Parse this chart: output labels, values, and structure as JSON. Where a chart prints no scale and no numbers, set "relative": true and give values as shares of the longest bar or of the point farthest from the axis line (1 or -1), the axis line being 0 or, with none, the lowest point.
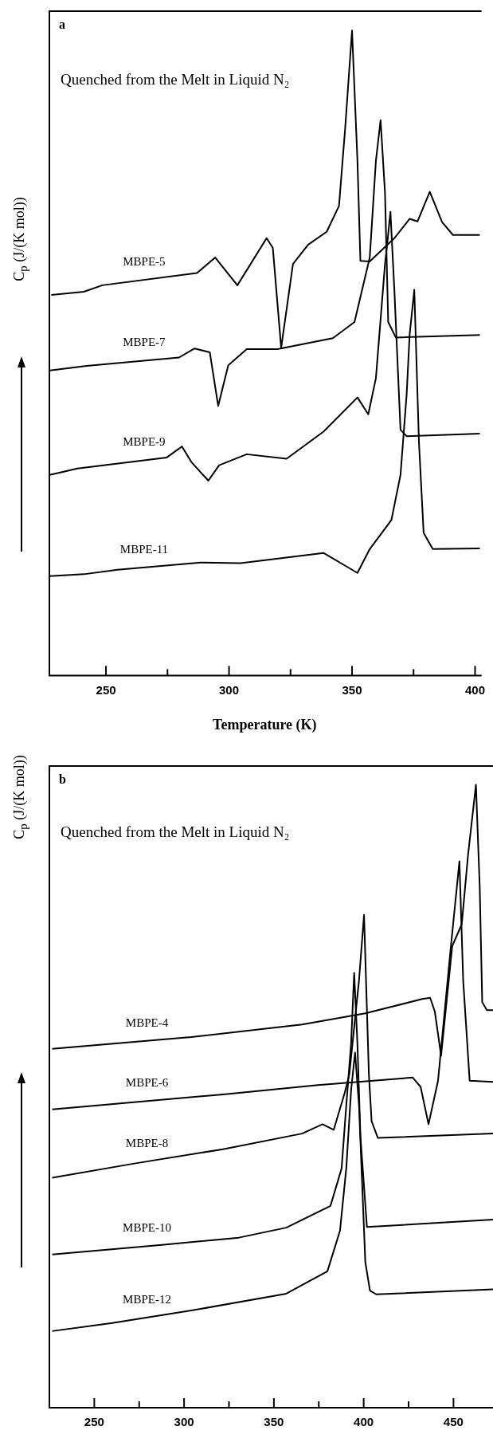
{
  "chart_data": [
    {
      "type": "line",
      "title": "a",
      "annotations": [
        "Quenched from the Melt in Liquid N₂"
      ],
      "xlabel": "Temperature (K)",
      "ylabel": "C$_{p}$ (J/(K mol))",
      "relative": true,
      "xlim": [
        227,
        402
      ],
      "xticks": [
        250,
        {
          "value": 275,
          "label": null
        },
        300,
        {
          "value": 325,
          "label": null
        },
        350,
        {
          "value": 375,
          "label": null
        },
        400
      ],
      "series": [
        {
          "name": "MBPE-5",
          "color": "#000000",
          "x": [
            227.8,
            241,
            248.5,
            287,
            294.4,
            303.4,
            315.3,
            317.8,
            321.2,
            326,
            332.2,
            339.7,
            344.7,
            347.2,
            350,
            352.2,
            353.4,
            357.2,
            367.2,
            373.4,
            376.6,
            381.6,
            386.6,
            391,
            402
          ],
          "values": [
            0.59,
            0.595,
            0.605,
            0.624,
            0.648,
            0.605,
            0.678,
            0.663,
            0.508,
            0.638,
            0.668,
            0.688,
            0.728,
            0.848,
            1.0,
            0.798,
            0.643,
            0.642,
            0.678,
            0.708,
            0.704,
            0.75,
            0.703,
            0.683,
            0.683
          ]
        },
        {
          "name": "MBPE-7",
          "color": "#000000",
          "x": [
            227.2,
            242.2,
            279.7,
            286,
            292.2,
            295.6,
            299.7,
            307.2,
            319.7,
            342.2,
            351,
            357.2,
            359.7,
            361.6,
            363.4,
            364.7,
            367.8,
            402
          ],
          "values": [
            0.473,
            0.48,
            0.493,
            0.507,
            0.501,
            0.418,
            0.481,
            0.506,
            0.506,
            0.523,
            0.548,
            0.648,
            0.798,
            0.861,
            0.748,
            0.548,
            0.524,
            0.528
          ]
        },
        {
          "name": "MBPE-9",
          "color": "#000000",
          "x": [
            227.2,
            238.4,
            274.7,
            280.9,
            284.7,
            291.6,
            296,
            307.2,
            323.4,
            338.4,
            352.2,
            356.6,
            359.7,
            363.4,
            364.4,
            365.6,
            367.2,
            369.7,
            372.2,
            402
          ],
          "values": [
            0.311,
            0.321,
            0.338,
            0.355,
            0.331,
            0.302,
            0.326,
            0.343,
            0.336,
            0.378,
            0.431,
            0.405,
            0.461,
            0.638,
            0.673,
            0.719,
            0.598,
            0.381,
            0.371,
            0.375
          ]
        },
        {
          "name": "MBPE-11",
          "color": "#000000",
          "x": [
            227.2,
            241,
            254.7,
            288.4,
            304.7,
            338.4,
            352.2,
            357.2,
            366,
            369.7,
            372.2,
            373.4,
            375.3,
            377.2,
            379.1,
            382.8,
            402
          ],
          "values": [
            0.154,
            0.157,
            0.164,
            0.175,
            0.174,
            0.19,
            0.159,
            0.196,
            0.241,
            0.311,
            0.436,
            0.528,
            0.598,
            0.361,
            0.221,
            0.196,
            0.197
          ]
        }
      ]
    },
    {
      "type": "line",
      "title": "b",
      "annotations": [
        "Quenched from the Melt in Liquid N₂"
      ],
      "ylabel": "C$_{p}$ (J/(K mol))",
      "relative": true,
      "xlim": [
        225,
        472
      ],
      "xticks": [
        250,
        {
          "value": 275,
          "label": null
        },
        300,
        {
          "value": 325,
          "label": null
        },
        350,
        {
          "value": 375,
          "label": null
        },
        400,
        {
          "value": 425,
          "label": null
        },
        450
      ],
      "series": [
        {
          "name": "MBPE-4",
          "color": "#000000",
          "x": [
            226.6,
            304,
            365.7,
            400.9,
            432.6,
            437,
            439.6,
            443.1,
            449.3,
            454.6,
            458.1,
            462.5,
            464.6,
            466,
            468.6,
            472
          ],
          "values": [
            0.576,
            0.595,
            0.615,
            0.633,
            0.656,
            0.658,
            0.636,
            0.565,
            0.741,
            0.776,
            0.887,
            1.0,
            0.837,
            0.651,
            0.638,
            0.638
          ]
        },
        {
          "name": "MBPE-6",
          "color": "#000000",
          "x": [
            226.6,
            321.7,
            374.5,
            427.3,
            431.7,
            436.1,
            441.4,
            448.4,
            453.3,
            455.4,
            459,
            472
          ],
          "values": [
            0.479,
            0.503,
            0.518,
            0.53,
            0.515,
            0.455,
            0.525,
            0.736,
            0.877,
            0.686,
            0.525,
            0.523
          ]
        },
        {
          "name": "MBPE-8",
          "color": "#000000",
          "x": [
            226.6,
            272.4,
            321.7,
            365.7,
            377.1,
            383.3,
            389.4,
            392,
            397.4,
            400.2,
            402.9,
            404.4,
            407.9,
            472
          ],
          "values": [
            0.369,
            0.392,
            0.415,
            0.44,
            0.455,
            0.446,
            0.505,
            0.535,
            0.686,
            0.791,
            0.535,
            0.46,
            0.433,
            0.44
          ]
        },
        {
          "name": "MBPE-10",
          "color": "#000000",
          "x": [
            226.6,
            286.4,
            330.5,
            356.9,
            381.5,
            387.7,
            390.3,
            393,
            394.7,
            396.5,
            398.2,
            401.8,
            472
          ],
          "values": [
            0.246,
            0.261,
            0.273,
            0.289,
            0.324,
            0.384,
            0.485,
            0.585,
            0.698,
            0.585,
            0.435,
            0.29,
            0.302
          ]
        },
        {
          "name": "MBPE-12",
          "color": "#000000",
          "x": [
            226.6,
            260,
            304,
            356.9,
            379.8,
            386.8,
            390.3,
            393,
            395.2,
            397.4,
            400.9,
            403.5,
            407,
            472
          ],
          "values": [
            0.123,
            0.136,
            0.156,
            0.183,
            0.219,
            0.284,
            0.384,
            0.51,
            0.57,
            0.485,
            0.234,
            0.188,
            0.182,
            0.19
          ]
        }
      ]
    }
  ]
}
